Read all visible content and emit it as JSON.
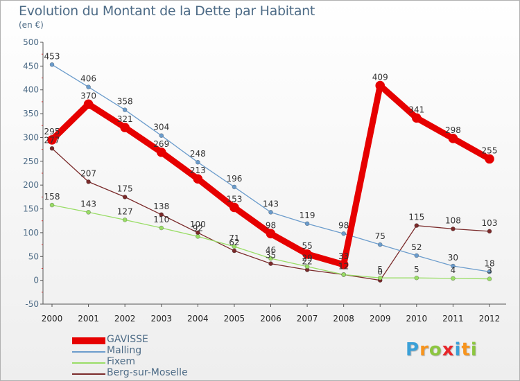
{
  "header": {
    "title": "Evolution du Montant de la Dette par Habitant",
    "subtitle": "(en €)"
  },
  "logo": {
    "letters": [
      "P",
      "r",
      "o",
      "x",
      "i",
      "t",
      "i"
    ],
    "colors": [
      "#3aa0d8",
      "#f7941d",
      "#8cc63f",
      "#e8262a",
      "#3aa0d8",
      "#f7941d",
      "#8cc63f"
    ]
  },
  "chart_data": {
    "type": "line",
    "title": "Evolution du Montant de la Dette par Habitant",
    "ylabel": "(en €)",
    "x": [
      "2000",
      "2001",
      "2002",
      "2003",
      "2004",
      "2005",
      "2006",
      "2007",
      "2008",
      "2009",
      "2010",
      "2011",
      "2012"
    ],
    "ylim": [
      -50,
      500
    ],
    "yticks": [
      -50,
      0,
      50,
      100,
      150,
      200,
      250,
      300,
      350,
      400,
      450,
      500
    ],
    "grid": false,
    "legend_position": "bottom-left",
    "series": [
      {
        "name": "GAVISSE",
        "color": "#e60000",
        "width": "thick",
        "values": [
          295,
          370,
          321,
          269,
          213,
          153,
          98,
          55,
          33,
          409,
          341,
          298,
          255
        ]
      },
      {
        "name": "Malling",
        "color": "#6b9ccc",
        "width": "thin",
        "values": [
          453,
          406,
          358,
          304,
          248,
          196,
          143,
          119,
          98,
          75,
          52,
          30,
          18
        ]
      },
      {
        "name": "Fixem",
        "color": "#99dd66",
        "width": "thin",
        "values": [
          158,
          143,
          127,
          110,
          92,
          71,
          46,
          29,
          12,
          5,
          5,
          4,
          3
        ]
      },
      {
        "name": "Berg-sur-Moselle",
        "color": "#7a2a2a",
        "width": "thin",
        "values": [
          277,
          207,
          175,
          138,
          100,
          62,
          35,
          22,
          12,
          0,
          115,
          108,
          103
        ]
      }
    ]
  }
}
